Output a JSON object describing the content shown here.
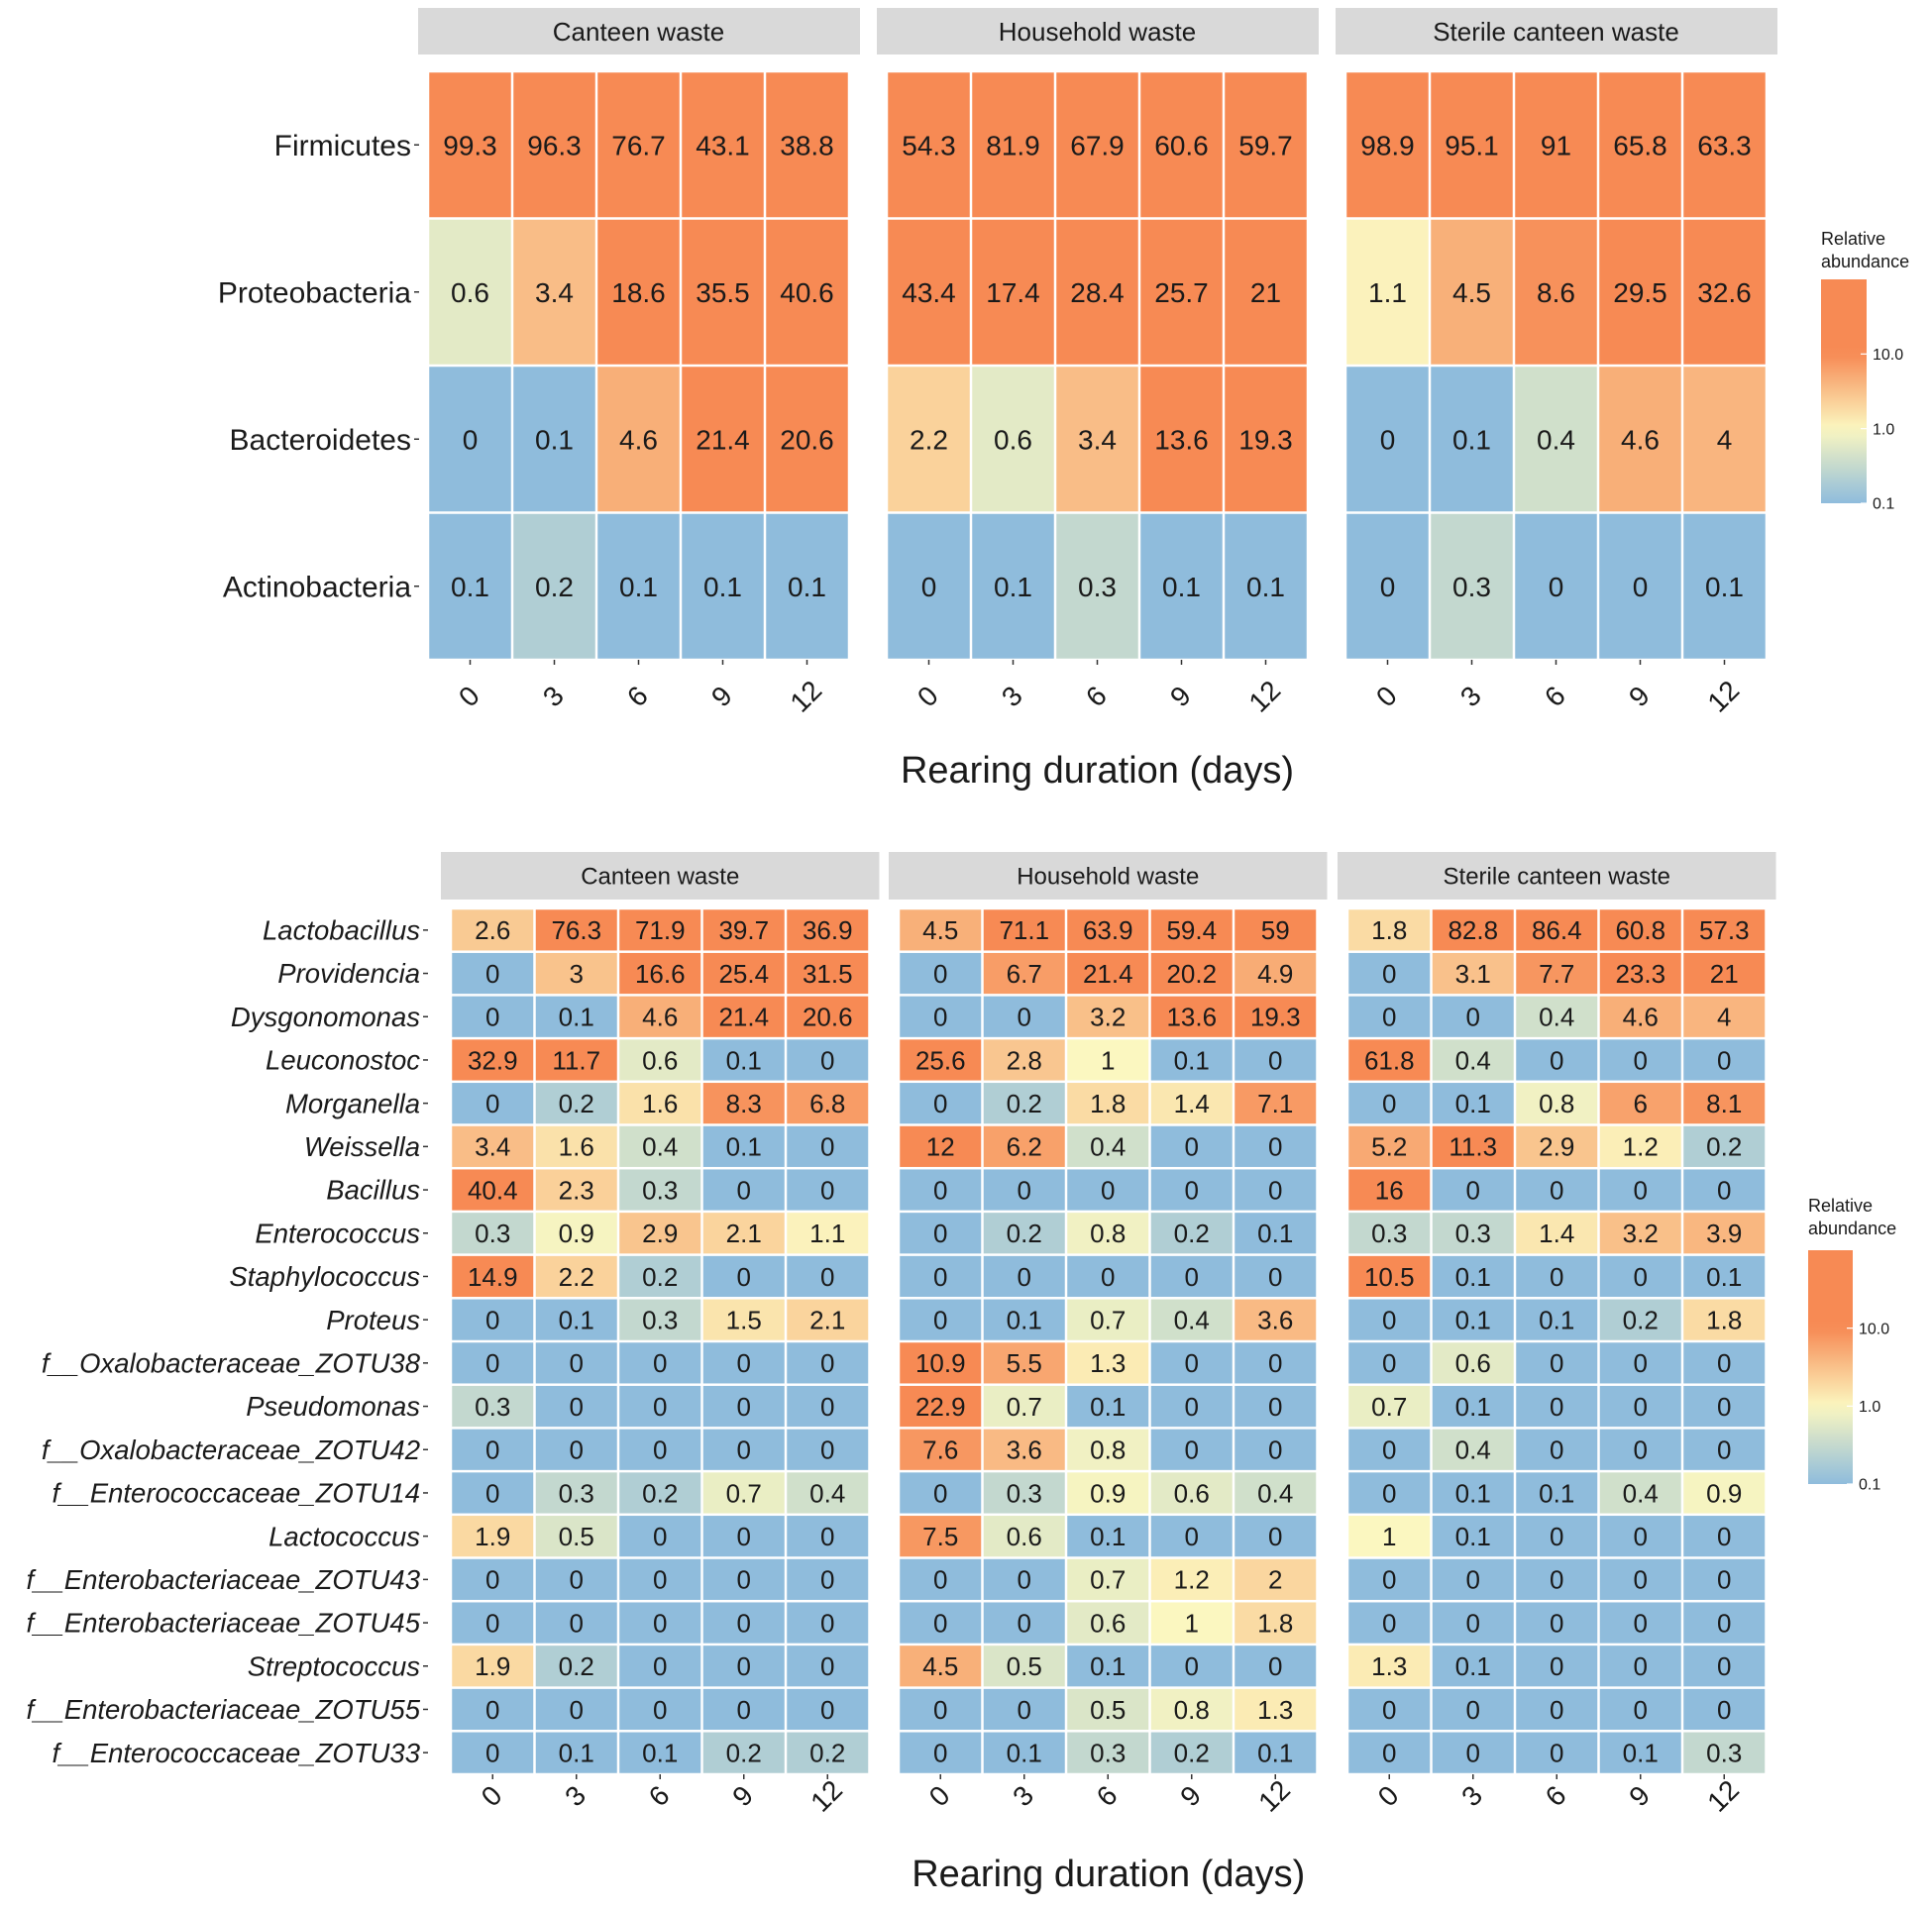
{
  "colors": {
    "low": "#8fbcdc",
    "mid": "#fbf7c0",
    "high": "#f78a54",
    "strip": "#d9d9d9",
    "cell_border": "#ffffff",
    "text": "#1a1a1a"
  },
  "chart_data": [
    {
      "type": "heatmap",
      "title": "",
      "xlabel": "Rearing duration (days)",
      "ylabel": "",
      "x": [
        "0",
        "3",
        "6",
        "9",
        "12"
      ],
      "legend": {
        "title": [
          "Relative",
          "abundance"
        ],
        "ticks": [
          "10.0",
          "1.0",
          "0.1"
        ],
        "tick_values": [
          10,
          1,
          0.1
        ],
        "position": "right"
      },
      "italic_rows": false,
      "facets": [
        "Canteen waste",
        "Household waste",
        "Sterile canteen waste"
      ],
      "rows": [
        "Firmicutes",
        "Proteobacteria",
        "Bacteroidetes",
        "Actinobacteria"
      ],
      "values": [
        [
          [
            99.3,
            96.3,
            76.7,
            43.1,
            38.8
          ],
          [
            0.6,
            3.4,
            18.6,
            35.5,
            40.6
          ],
          [
            0,
            0.1,
            4.6,
            21.4,
            20.6
          ],
          [
            0.1,
            0.2,
            0.1,
            0.1,
            0.1
          ]
        ],
        [
          [
            54.3,
            81.9,
            67.9,
            60.6,
            59.7
          ],
          [
            43.4,
            17.4,
            28.4,
            25.7,
            21
          ],
          [
            2.2,
            0.6,
            3.4,
            13.6,
            19.3
          ],
          [
            0,
            0.1,
            0.3,
            0.1,
            0.1
          ]
        ],
        [
          [
            98.9,
            95.1,
            91,
            65.8,
            63.3
          ],
          [
            1.1,
            4.5,
            8.6,
            29.5,
            32.6
          ],
          [
            0,
            0.1,
            0.4,
            4.6,
            4
          ],
          [
            0,
            0.3,
            0,
            0,
            0.1
          ]
        ]
      ]
    },
    {
      "type": "heatmap",
      "title": "",
      "xlabel": "Rearing duration (days)",
      "ylabel": "",
      "x": [
        "0",
        "3",
        "6",
        "9",
        "12"
      ],
      "legend": {
        "title": [
          "Relative",
          "abundance"
        ],
        "ticks": [
          "10.0",
          "1.0",
          "0.1"
        ],
        "tick_values": [
          10,
          1,
          0.1
        ],
        "position": "right"
      },
      "italic_rows": true,
      "facets": [
        "Canteen waste",
        "Household waste",
        "Sterile canteen waste"
      ],
      "rows": [
        "Lactobacillus",
        "Providencia",
        "Dysgonomonas",
        "Leuconostoc",
        "Morganella",
        "Weissella",
        "Bacillus",
        "Enterococcus",
        "Staphylococcus",
        "Proteus",
        "f__Oxalobacteraceae_ZOTU38",
        "Pseudomonas",
        "f__Oxalobacteraceae_ZOTU42",
        "f__Enterococcaceae_ZOTU14",
        "Lactococcus",
        "f__Enterobacteriaceae_ZOTU43",
        "f__Enterobacteriaceae_ZOTU45",
        "Streptococcus",
        "f__Enterobacteriaceae_ZOTU55",
        "f__Enterococcaceae_ZOTU33"
      ],
      "values": [
        [
          [
            2.6,
            76.3,
            71.9,
            39.7,
            36.9
          ],
          [
            0,
            3,
            16.6,
            25.4,
            31.5
          ],
          [
            0,
            0.1,
            4.6,
            21.4,
            20.6
          ],
          [
            32.9,
            11.7,
            0.6,
            0.1,
            0
          ],
          [
            0,
            0.2,
            1.6,
            8.3,
            6.8
          ],
          [
            3.4,
            1.6,
            0.4,
            0.1,
            0
          ],
          [
            40.4,
            2.3,
            0.3,
            0,
            0
          ],
          [
            0.3,
            0.9,
            2.9,
            2.1,
            1.1
          ],
          [
            14.9,
            2.2,
            0.2,
            0,
            0
          ],
          [
            0,
            0.1,
            0.3,
            1.5,
            2.1
          ],
          [
            0,
            0,
            0,
            0,
            0
          ],
          [
            0.3,
            0,
            0,
            0,
            0
          ],
          [
            0,
            0,
            0,
            0,
            0
          ],
          [
            0,
            0.3,
            0.2,
            0.7,
            0.4
          ],
          [
            1.9,
            0.5,
            0,
            0,
            0
          ],
          [
            0,
            0,
            0,
            0,
            0
          ],
          [
            0,
            0,
            0,
            0,
            0
          ],
          [
            1.9,
            0.2,
            0,
            0,
            0
          ],
          [
            0,
            0,
            0,
            0,
            0
          ],
          [
            0,
            0.1,
            0.1,
            0.2,
            0.2
          ]
        ],
        [
          [
            4.5,
            71.1,
            63.9,
            59.4,
            59
          ],
          [
            0,
            6.7,
            21.4,
            20.2,
            4.9
          ],
          [
            0,
            0,
            3.2,
            13.6,
            19.3
          ],
          [
            25.6,
            2.8,
            1,
            0.1,
            0
          ],
          [
            0,
            0.2,
            1.8,
            1.4,
            7.1
          ],
          [
            12,
            6.2,
            0.4,
            0,
            0
          ],
          [
            0,
            0,
            0,
            0,
            0
          ],
          [
            0,
            0.2,
            0.8,
            0.2,
            0.1
          ],
          [
            0,
            0,
            0,
            0,
            0
          ],
          [
            0,
            0.1,
            0.7,
            0.4,
            3.6
          ],
          [
            10.9,
            5.5,
            1.3,
            0,
            0
          ],
          [
            22.9,
            0.7,
            0.1,
            0,
            0
          ],
          [
            7.6,
            3.6,
            0.8,
            0,
            0
          ],
          [
            0,
            0.3,
            0.9,
            0.6,
            0.4
          ],
          [
            7.5,
            0.6,
            0.1,
            0,
            0
          ],
          [
            0,
            0,
            0.7,
            1.2,
            2
          ],
          [
            0,
            0,
            0.6,
            1,
            1.8
          ],
          [
            4.5,
            0.5,
            0.1,
            0,
            0
          ],
          [
            0,
            0,
            0.5,
            0.8,
            1.3
          ],
          [
            0,
            0.1,
            0.3,
            0.2,
            0.1
          ]
        ],
        [
          [
            1.8,
            82.8,
            86.4,
            60.8,
            57.3
          ],
          [
            0,
            3.1,
            7.7,
            23.3,
            21
          ],
          [
            0,
            0,
            0.4,
            4.6,
            4
          ],
          [
            61.8,
            0.4,
            0,
            0,
            0
          ],
          [
            0,
            0.1,
            0.8,
            6,
            8.1
          ],
          [
            5.2,
            11.3,
            2.9,
            1.2,
            0.2
          ],
          [
            16,
            0,
            0,
            0,
            0
          ],
          [
            0.3,
            0.3,
            1.4,
            3.2,
            3.9
          ],
          [
            10.5,
            0.1,
            0,
            0,
            0.1
          ],
          [
            0,
            0.1,
            0.1,
            0.2,
            1.8
          ],
          [
            0,
            0.6,
            0,
            0,
            0
          ],
          [
            0.7,
            0.1,
            0,
            0,
            0
          ],
          [
            0,
            0.4,
            0,
            0,
            0
          ],
          [
            0,
            0.1,
            0.1,
            0.4,
            0.9
          ],
          [
            1,
            0.1,
            0,
            0,
            0
          ],
          [
            0,
            0,
            0,
            0,
            0
          ],
          [
            0,
            0,
            0,
            0,
            0
          ],
          [
            1.3,
            0.1,
            0,
            0,
            0
          ],
          [
            0,
            0,
            0,
            0,
            0
          ],
          [
            0,
            0,
            0,
            0.1,
            0.3
          ]
        ]
      ]
    }
  ]
}
